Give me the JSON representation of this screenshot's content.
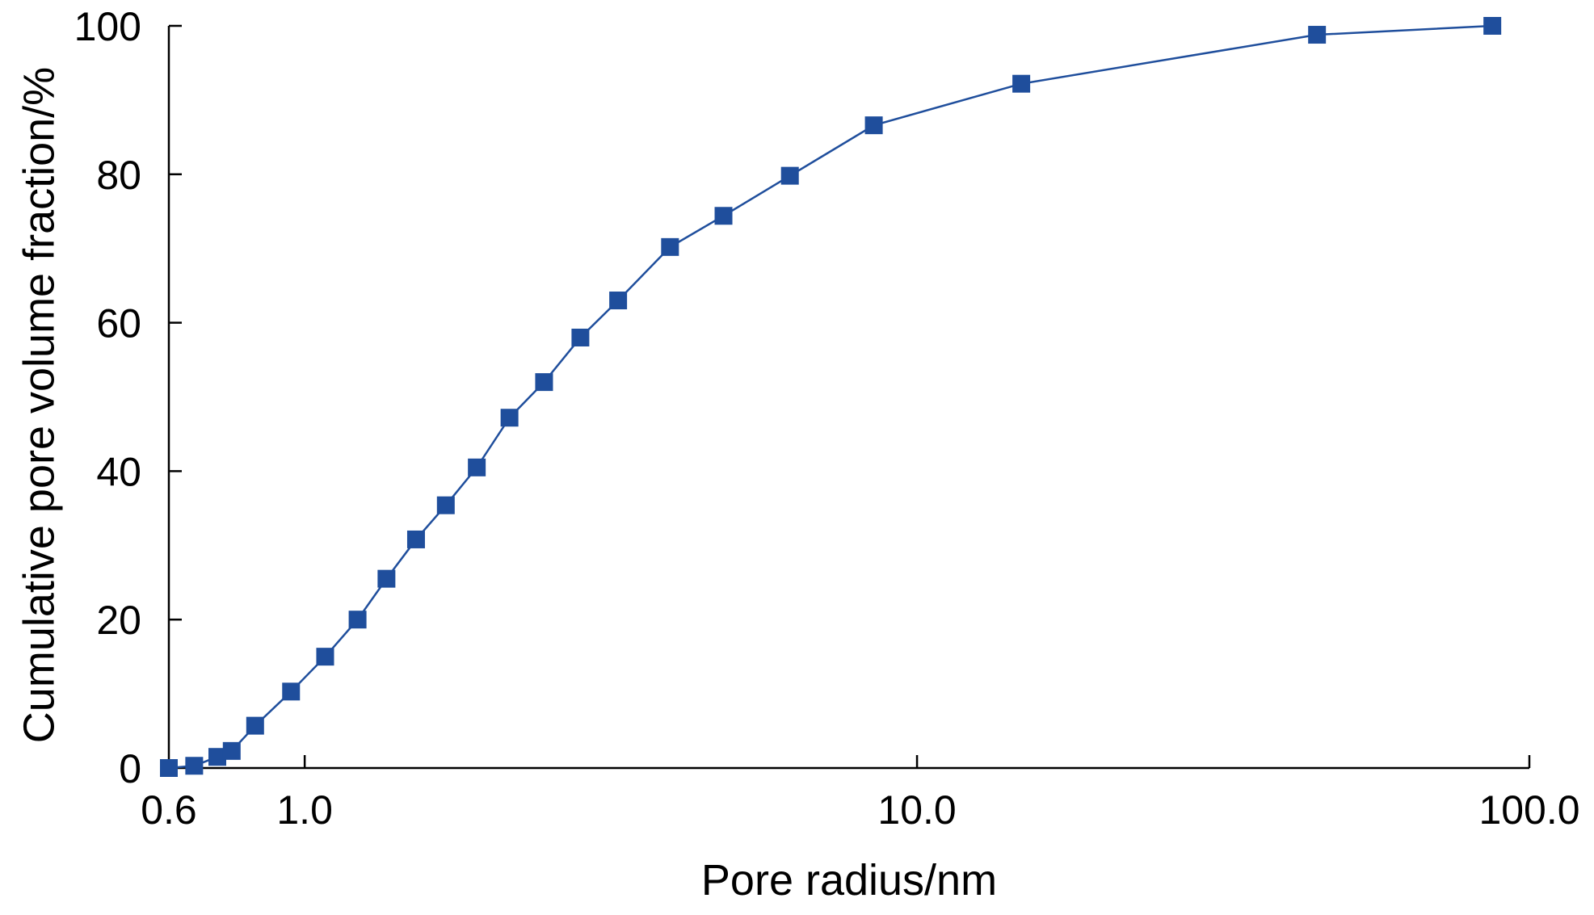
{
  "chart_data": {
    "type": "scatter",
    "xlabel": "Pore radius/nm",
    "ylabel": "Cumulative pore volume fraction/%",
    "x_scale": "log",
    "xlim": [
      0.6,
      100.0
    ],
    "ylim": [
      0,
      100
    ],
    "x_ticks": [
      0.6,
      1.0,
      10.0,
      100.0
    ],
    "x_tick_labels": [
      "0.6",
      "1.0",
      "10.0",
      "100.0"
    ],
    "y_ticks": [
      0,
      20,
      40,
      60,
      80,
      100
    ],
    "y_tick_labels": [
      "0",
      "20",
      "40",
      "60",
      "80",
      "100"
    ],
    "grid": false,
    "legend": "none",
    "series": [
      {
        "color": "#1f4e9c",
        "marker": "square",
        "connected": true,
        "points": [
          {
            "x": 0.6,
            "y": 0.0
          },
          {
            "x": 0.66,
            "y": 0.3
          },
          {
            "x": 0.72,
            "y": 1.5
          },
          {
            "x": 0.76,
            "y": 2.3
          },
          {
            "x": 0.83,
            "y": 5.7
          },
          {
            "x": 0.95,
            "y": 10.3
          },
          {
            "x": 1.08,
            "y": 15.0
          },
          {
            "x": 1.22,
            "y": 20.0
          },
          {
            "x": 1.36,
            "y": 25.5
          },
          {
            "x": 1.52,
            "y": 30.8
          },
          {
            "x": 1.7,
            "y": 35.4
          },
          {
            "x": 1.91,
            "y": 40.5
          },
          {
            "x": 2.16,
            "y": 47.2
          },
          {
            "x": 2.46,
            "y": 52.0
          },
          {
            "x": 2.82,
            "y": 58.0
          },
          {
            "x": 3.25,
            "y": 63.0
          },
          {
            "x": 3.95,
            "y": 70.2
          },
          {
            "x": 4.83,
            "y": 74.4
          },
          {
            "x": 6.2,
            "y": 79.8
          },
          {
            "x": 8.5,
            "y": 86.6
          },
          {
            "x": 14.8,
            "y": 92.2
          },
          {
            "x": 45.0,
            "y": 98.8
          },
          {
            "x": 87.0,
            "y": 100.0
          }
        ]
      }
    ]
  }
}
